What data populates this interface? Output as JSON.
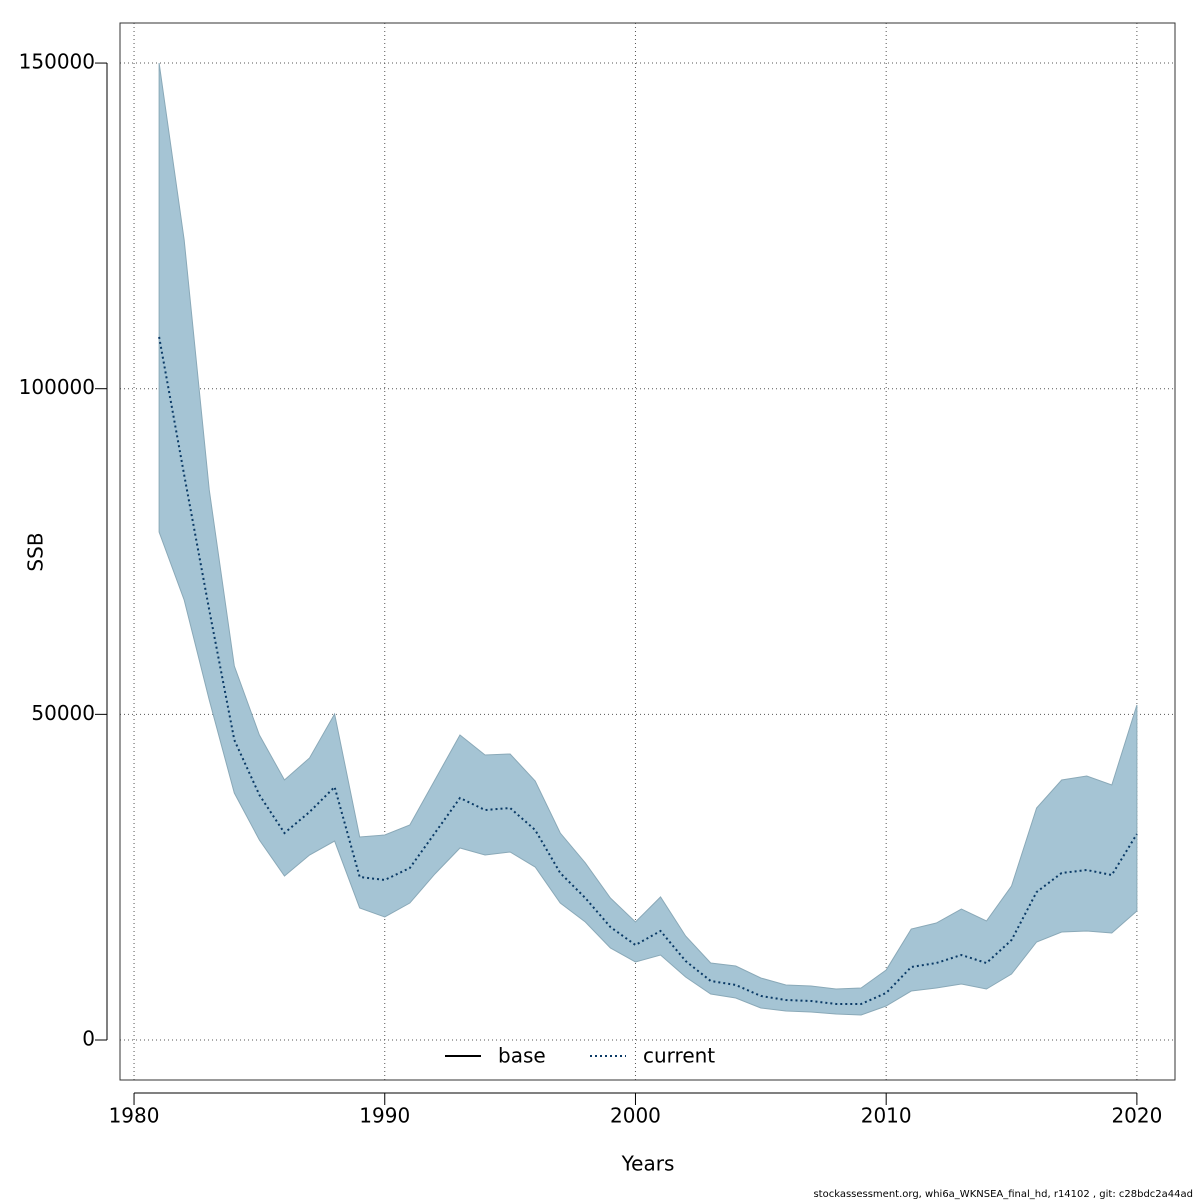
{
  "chart_data": {
    "type": "line",
    "xlabel": "Years",
    "ylabel": "SSB",
    "footnote": "stockassessment.org, whi6a_WKNSEA_final_hd, r14102 , git: c28bdc2a44ad",
    "x": [
      1981,
      1982,
      1983,
      1984,
      1985,
      1986,
      1987,
      1988,
      1989,
      1990,
      1991,
      1992,
      1993,
      1994,
      1995,
      1996,
      1997,
      1998,
      1999,
      2000,
      2001,
      2002,
      2003,
      2004,
      2005,
      2006,
      2007,
      2008,
      2009,
      2010,
      2011,
      2012,
      2013,
      2014,
      2015,
      2016,
      2017,
      2018,
      2019,
      2020
    ],
    "series": [
      {
        "name": "base",
        "color": "#000000",
        "style": "solid"
      },
      {
        "name": "current",
        "color": "#0a3a66",
        "style": "dotted",
        "values": [
          107940,
          86750,
          66020,
          46060,
          37620,
          31780,
          35010,
          38850,
          25030,
          24570,
          26410,
          31780,
          37160,
          35310,
          35620,
          32240,
          25640,
          21800,
          17350,
          14590,
          16740,
          12130,
          9060,
          8450,
          6760,
          6140,
          5990,
          5530,
          5530,
          7220,
          11210,
          11820,
          13050,
          11820,
          15350,
          22720,
          25640,
          26100,
          25330,
          31630
        ],
        "upper": [
          150000,
          122830,
          84450,
          57420,
          46830,
          39920,
          43300,
          50050,
          31170,
          31480,
          33010,
          39920,
          46830,
          43760,
          43910,
          39770,
          31780,
          27180,
          21800,
          18120,
          21960,
          15970,
          11820,
          11360,
          9520,
          8450,
          8290,
          7830,
          7980,
          10750,
          17040,
          17960,
          20110,
          18270,
          23640,
          35620,
          39920,
          40530,
          39150,
          51440
        ],
        "lower": [
          78000,
          67560,
          52200,
          37920,
          30710,
          25180,
          28400,
          30550,
          20270,
          18890,
          21030,
          25490,
          29480,
          28400,
          28870,
          26560,
          21030,
          18120,
          14130,
          11980,
          13050,
          9670,
          7060,
          6450,
          4910,
          4450,
          4300,
          3990,
          3840,
          5220,
          7520,
          7980,
          8600,
          7830,
          10130,
          15050,
          16580,
          16740,
          16430,
          19810
        ],
        "band_color": "#a5c4d4"
      }
    ],
    "xlim": [
      1979.44,
      2021.52
    ],
    "xticks": [
      1980,
      1990,
      2000,
      2010,
      2020
    ],
    "ylim": [
      -6142,
      156150
    ],
    "yticks": [
      0,
      50000,
      100000,
      150000
    ],
    "grid": true,
    "legend": "bottom"
  }
}
